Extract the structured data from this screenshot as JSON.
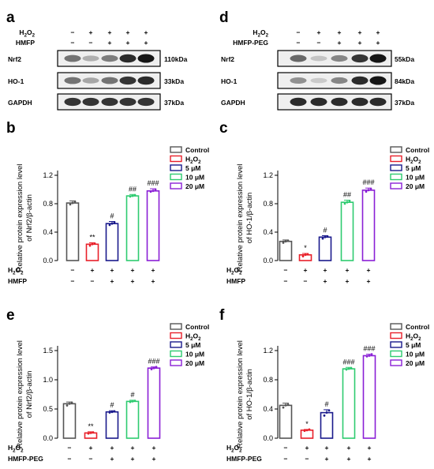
{
  "blots": [
    {
      "panel": "a",
      "treatments": [
        {
          "label": "H2O2",
          "signs": [
            "−",
            "+",
            "+",
            "+",
            "+"
          ]
        },
        {
          "label": "HMFP",
          "signs": [
            "−",
            "−",
            "+",
            "+",
            "+"
          ]
        }
      ],
      "proteins": [
        {
          "name": "Nrf2",
          "size": "110kDa",
          "intensity": [
            0.55,
            0.25,
            0.5,
            0.9,
            1.0
          ]
        },
        {
          "name": "HO-1",
          "size": "33kDa",
          "intensity": [
            0.55,
            0.3,
            0.55,
            0.85,
            0.9
          ]
        },
        {
          "name": "GAPDH",
          "size": "37kDa",
          "intensity": [
            0.85,
            0.85,
            0.85,
            0.85,
            0.85
          ]
        }
      ]
    },
    {
      "panel": "d",
      "treatments": [
        {
          "label": "H2O2",
          "signs": [
            "−",
            "+",
            "+",
            "+",
            "+"
          ]
        },
        {
          "label": "HMFP-PEG",
          "signs": [
            "−",
            "−",
            "+",
            "+",
            "+"
          ]
        }
      ],
      "proteins": [
        {
          "name": "Nrf2",
          "size": "55kDa",
          "intensity": [
            0.6,
            0.15,
            0.45,
            0.85,
            1.0
          ]
        },
        {
          "name": "HO-1",
          "size": "84kDa",
          "intensity": [
            0.4,
            0.12,
            0.45,
            0.9,
            1.0
          ]
        },
        {
          "name": "GAPDH",
          "size": "37kDa",
          "intensity": [
            0.9,
            0.9,
            0.9,
            0.9,
            0.9
          ]
        }
      ]
    }
  ],
  "legend": [
    {
      "name": "Control",
      "color": "#555555"
    },
    {
      "name": "H2O2",
      "color": "#e8202a"
    },
    {
      "name": "5 μM",
      "color": "#1a1a8c"
    },
    {
      "name": "10 μM",
      "color": "#2ecb70"
    },
    {
      "name": "20 μM",
      "color": "#8a1fd6"
    }
  ],
  "chart_data": [
    {
      "panel": "b",
      "type": "bar",
      "ylabel": [
        "Relative protein expression level",
        "of Nrf2/β-actin"
      ],
      "ylim": [
        0,
        1.2
      ],
      "yticks": [
        "0.0",
        "0.4",
        "0.8",
        "1.2"
      ],
      "categories": [
        "Control",
        "H2O2",
        "5 μM",
        "10 μM",
        "20 μM"
      ],
      "values": [
        0.81,
        0.23,
        0.52,
        0.91,
        0.98
      ],
      "errors": [
        0.03,
        0.02,
        0.03,
        0.02,
        0.03
      ],
      "points": [
        [
          0.79,
          0.81,
          0.83
        ],
        [
          0.21,
          0.23,
          0.24
        ],
        [
          0.5,
          0.52,
          0.54
        ],
        [
          0.9,
          0.91,
          0.92
        ],
        [
          0.97,
          0.98,
          1.0
        ]
      ],
      "annotations": [
        "",
        "**",
        "#",
        "##",
        "###"
      ],
      "row_labels": [
        "H2O2",
        "HMFP"
      ],
      "row_signs": [
        [
          "−",
          "+",
          "+",
          "+",
          "+"
        ],
        [
          "−",
          "−",
          "+",
          "+",
          "+"
        ]
      ]
    },
    {
      "panel": "c",
      "type": "bar",
      "ylabel": [
        "Relative protein expression level",
        "of HO-1/β-actin"
      ],
      "ylim": [
        0,
        1.2
      ],
      "yticks": [
        "0.0",
        "0.4",
        "0.8",
        "1.2"
      ],
      "categories": [
        "Control",
        "H2O2",
        "5 μM",
        "10 μM",
        "20 μM"
      ],
      "values": [
        0.27,
        0.08,
        0.33,
        0.82,
        0.99
      ],
      "errors": [
        0.02,
        0.02,
        0.02,
        0.03,
        0.03
      ],
      "points": [
        [
          0.25,
          0.27,
          0.28
        ],
        [
          0.06,
          0.08,
          0.09
        ],
        [
          0.31,
          0.33,
          0.34
        ],
        [
          0.8,
          0.82,
          0.84
        ],
        [
          0.97,
          0.99,
          1.01
        ]
      ],
      "annotations": [
        "",
        "*",
        "#",
        "##",
        "###"
      ],
      "row_labels": [
        "H2O2",
        "HMFP"
      ],
      "row_signs": [
        [
          "−",
          "+",
          "+",
          "+",
          "+"
        ],
        [
          "−",
          "−",
          "+",
          "+",
          "+"
        ]
      ]
    },
    {
      "panel": "e",
      "type": "bar",
      "ylabel": [
        "Relative protein expression level",
        "of Nrf2/β-actin"
      ],
      "ylim": [
        0,
        1.5
      ],
      "yticks": [
        "0.0",
        "0.5",
        "1.0",
        "1.5"
      ],
      "categories": [
        "Control",
        "H2O2",
        "5 μM",
        "10 μM",
        "20 μM"
      ],
      "values": [
        0.59,
        0.09,
        0.45,
        0.63,
        1.2
      ],
      "errors": [
        0.03,
        0.02,
        0.02,
        0.02,
        0.02
      ],
      "points": [
        [
          0.56,
          0.59,
          0.61
        ],
        [
          0.08,
          0.09,
          0.1
        ],
        [
          0.44,
          0.45,
          0.46
        ],
        [
          0.62,
          0.63,
          0.64
        ],
        [
          1.18,
          1.2,
          1.22
        ]
      ],
      "annotations": [
        "",
        "**",
        "#",
        "#",
        "###"
      ],
      "row_labels": [
        "H2O2",
        "HMFP-PEG"
      ],
      "row_signs": [
        [
          "−",
          "+",
          "+",
          "+",
          "+"
        ],
        [
          "−",
          "−",
          "+",
          "+",
          "+"
        ]
      ]
    },
    {
      "panel": "f",
      "type": "bar",
      "ylabel": [
        "Relative protein expression level",
        "of HO-1/β-actin"
      ],
      "ylim": [
        0,
        1.2
      ],
      "yticks": [
        "0.0",
        "0.4",
        "0.8",
        "1.2"
      ],
      "categories": [
        "Control",
        "H2O2",
        "5 μM",
        "10 μM",
        "20 μM"
      ],
      "values": [
        0.45,
        0.11,
        0.35,
        0.95,
        1.13
      ],
      "errors": [
        0.03,
        0.01,
        0.04,
        0.02,
        0.02
      ],
      "points": [
        [
          0.42,
          0.45,
          0.46
        ],
        [
          0.1,
          0.11,
          0.12
        ],
        [
          0.31,
          0.35,
          0.38
        ],
        [
          0.94,
          0.95,
          0.96
        ],
        [
          1.12,
          1.13,
          1.15
        ]
      ],
      "annotations": [
        "",
        "*",
        "#",
        "###",
        "###"
      ],
      "row_labels": [
        "H2O2",
        "HMFP-PEG"
      ],
      "row_signs": [
        [
          "−",
          "+",
          "+",
          "+",
          "+"
        ],
        [
          "−",
          "−",
          "+",
          "+",
          "+"
        ]
      ]
    }
  ]
}
